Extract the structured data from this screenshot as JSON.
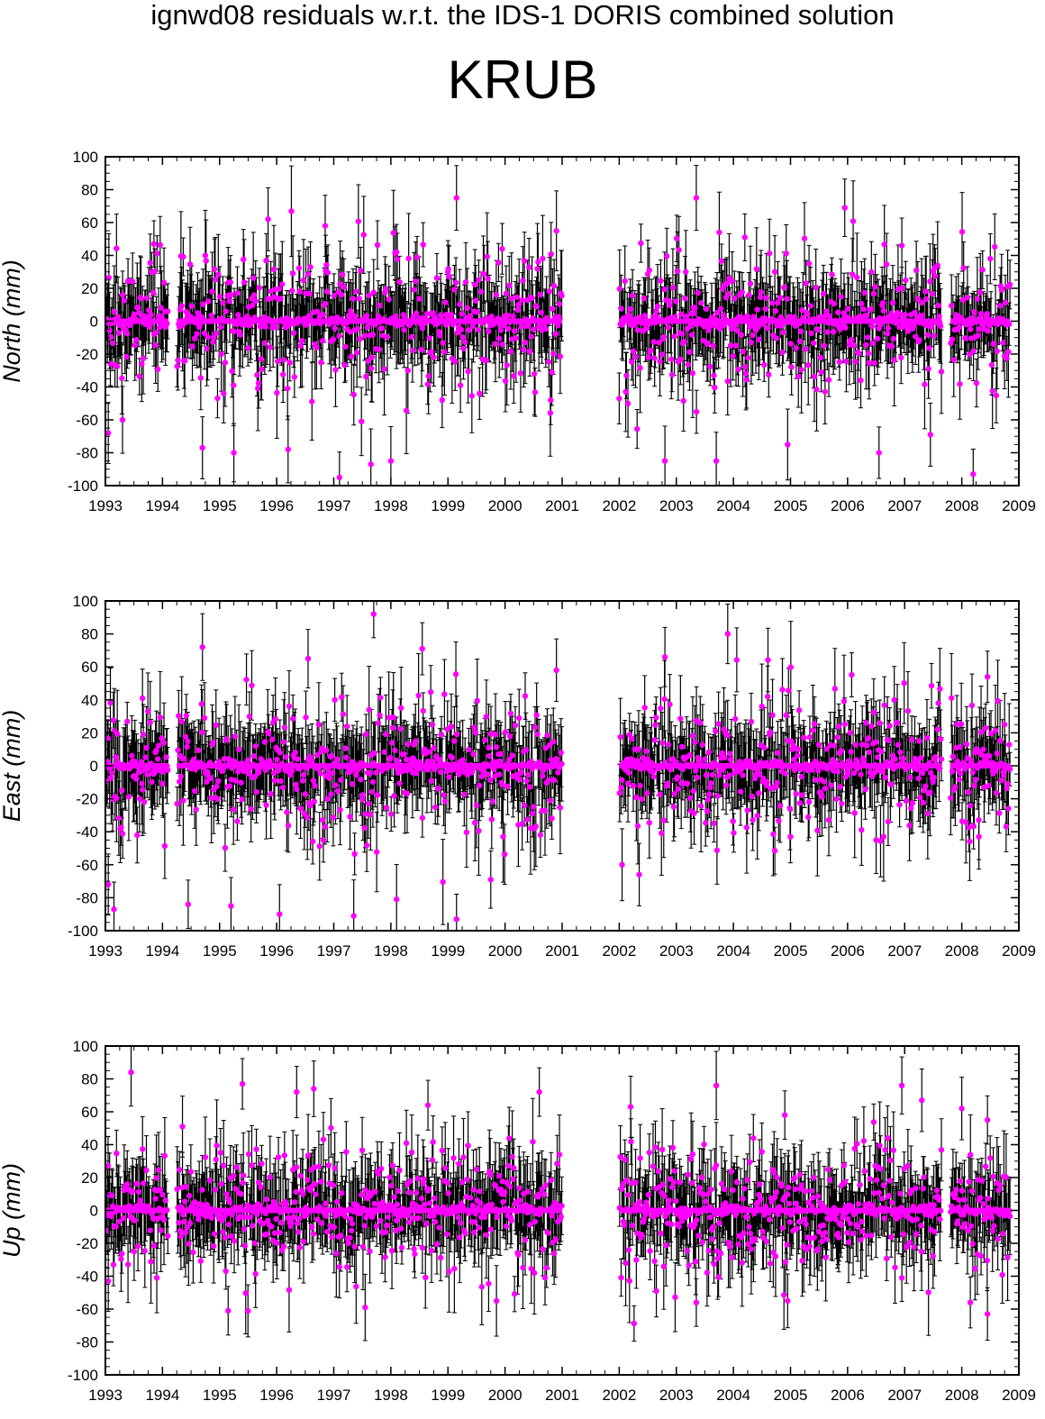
{
  "header": {
    "suptitle": "ignwd08 residuals w.r.t. the IDS-1 DORIS combined solution",
    "station": "KRUB"
  },
  "colors": {
    "marker": "#ff00ff",
    "errorbar": "#000000",
    "axis": "#000000",
    "background": "#ffffff"
  },
  "chart_data": [
    {
      "type": "scatter",
      "component": "North",
      "ylabel": "North (mm)",
      "ylim": [
        -100,
        100
      ],
      "yticks": [
        -100,
        -80,
        -60,
        -40,
        -20,
        0,
        20,
        40,
        60,
        80,
        100
      ],
      "xlim": [
        1993,
        2009
      ],
      "xticks": [
        1993,
        1994,
        1995,
        1996,
        1997,
        1998,
        1999,
        2000,
        2001,
        2002,
        2003,
        2004,
        2005,
        2006,
        2007,
        2008,
        2009
      ],
      "error_bars": true,
      "data_segments": [
        [
          1993.0,
          1994.1
        ],
        [
          1994.25,
          2001.0
        ],
        [
          2002.0,
          2007.65
        ],
        [
          2007.8,
          2008.85
        ]
      ],
      "highlights": [
        {
          "x": 1993.05,
          "y": -68
        },
        {
          "x": 1993.3,
          "y": -60
        },
        {
          "x": 1993.85,
          "y": 47
        },
        {
          "x": 1994.7,
          "y": -77
        },
        {
          "x": 1995.25,
          "y": -80
        },
        {
          "x": 1995.85,
          "y": 62
        },
        {
          "x": 1996.2,
          "y": -78
        },
        {
          "x": 1996.85,
          "y": 58
        },
        {
          "x": 1997.1,
          "y": -95
        },
        {
          "x": 1997.65,
          "y": -87
        },
        {
          "x": 1998.0,
          "y": -85
        },
        {
          "x": 1998.1,
          "y": 42
        },
        {
          "x": 1999.15,
          "y": 75
        },
        {
          "x": 1999.0,
          "y": 30
        },
        {
          "x": 1999.95,
          "y": 44
        },
        {
          "x": 2000.8,
          "y": -48
        },
        {
          "x": 2002.0,
          "y": -47
        },
        {
          "x": 2002.8,
          "y": -85
        },
        {
          "x": 2003.35,
          "y": 75
        },
        {
          "x": 2003.7,
          "y": -85
        },
        {
          "x": 2004.2,
          "y": 51
        },
        {
          "x": 2004.95,
          "y": -75
        },
        {
          "x": 2005.95,
          "y": 69
        },
        {
          "x": 2006.55,
          "y": -80
        },
        {
          "x": 2006.95,
          "y": 46
        },
        {
          "x": 2007.45,
          "y": -69
        },
        {
          "x": 2008.2,
          "y": -93
        },
        {
          "x": 2008.5,
          "y": 38
        }
      ],
      "scatter_sd": 22
    },
    {
      "type": "scatter",
      "component": "East",
      "ylabel": "East (mm)",
      "ylim": [
        -100,
        100
      ],
      "yticks": [
        -100,
        -80,
        -60,
        -40,
        -20,
        0,
        20,
        40,
        60,
        80,
        100
      ],
      "xlim": [
        1993,
        2009
      ],
      "xticks": [
        1993,
        1994,
        1995,
        1996,
        1997,
        1998,
        1999,
        2000,
        2001,
        2002,
        2003,
        2004,
        2005,
        2006,
        2007,
        2008,
        2009
      ],
      "error_bars": true,
      "data_segments": [
        [
          1993.0,
          1994.1
        ],
        [
          1994.25,
          2001.0
        ],
        [
          2002.0,
          2007.65
        ],
        [
          2007.8,
          2008.85
        ]
      ],
      "highlights": [
        {
          "x": 1993.05,
          "y": -72
        },
        {
          "x": 1993.15,
          "y": -87
        },
        {
          "x": 1993.65,
          "y": 41
        },
        {
          "x": 1994.45,
          "y": -84
        },
        {
          "x": 1994.7,
          "y": 72
        },
        {
          "x": 1995.2,
          "y": -85
        },
        {
          "x": 1996.05,
          "y": -90
        },
        {
          "x": 1996.55,
          "y": 65
        },
        {
          "x": 1997.35,
          "y": -91
        },
        {
          "x": 1997.7,
          "y": 92
        },
        {
          "x": 1998.1,
          "y": -81
        },
        {
          "x": 1998.55,
          "y": 71
        },
        {
          "x": 1999.15,
          "y": -93
        },
        {
          "x": 1999.75,
          "y": -69
        },
        {
          "x": 2000.9,
          "y": 58
        },
        {
          "x": 2002.05,
          "y": -60
        },
        {
          "x": 2002.35,
          "y": -66
        },
        {
          "x": 2002.8,
          "y": 66
        },
        {
          "x": 2003.9,
          "y": 80
        },
        {
          "x": 2004.6,
          "y": 42
        },
        {
          "x": 2005.0,
          "y": -43
        },
        {
          "x": 2006.5,
          "y": -45
        },
        {
          "x": 2006.85,
          "y": 26
        },
        {
          "x": 2008.45,
          "y": 54
        },
        {
          "x": 2008.3,
          "y": -43
        }
      ],
      "scatter_sd": 22
    },
    {
      "type": "scatter",
      "component": "Up",
      "ylabel": "Up (mm)",
      "ylim": [
        -100,
        100
      ],
      "yticks": [
        -100,
        -80,
        -60,
        -40,
        -20,
        0,
        20,
        40,
        60,
        80,
        100
      ],
      "xlim": [
        1993,
        2009
      ],
      "xticks": [
        1993,
        1994,
        1995,
        1996,
        1997,
        1998,
        1999,
        2000,
        2001,
        2002,
        2003,
        2004,
        2005,
        2006,
        2007,
        2008,
        2009
      ],
      "error_bars": true,
      "data_segments": [
        [
          1993.0,
          1994.1
        ],
        [
          1994.25,
          2001.0
        ],
        [
          2002.0,
          2007.65
        ],
        [
          2007.8,
          2008.85
        ]
      ],
      "highlights": [
        {
          "x": 1993.05,
          "y": -43
        },
        {
          "x": 1993.45,
          "y": 84
        },
        {
          "x": 1993.9,
          "y": -41
        },
        {
          "x": 1994.35,
          "y": 51
        },
        {
          "x": 1995.15,
          "y": -61
        },
        {
          "x": 1995.4,
          "y": 77
        },
        {
          "x": 1996.35,
          "y": 72
        },
        {
          "x": 1996.65,
          "y": 74
        },
        {
          "x": 1997.55,
          "y": -59
        },
        {
          "x": 1998.65,
          "y": 64
        },
        {
          "x": 1999.85,
          "y": -55
        },
        {
          "x": 2000.6,
          "y": 72
        },
        {
          "x": 2002.2,
          "y": 63
        },
        {
          "x": 2002.65,
          "y": -49
        },
        {
          "x": 2003.35,
          "y": -56
        },
        {
          "x": 2003.7,
          "y": 76
        },
        {
          "x": 2004.35,
          "y": 44
        },
        {
          "x": 2004.9,
          "y": 58
        },
        {
          "x": 2004.95,
          "y": -55
        },
        {
          "x": 2006.7,
          "y": 44
        },
        {
          "x": 2006.95,
          "y": 76
        },
        {
          "x": 2007.3,
          "y": 67
        },
        {
          "x": 2008.0,
          "y": 62
        },
        {
          "x": 2008.15,
          "y": -56
        },
        {
          "x": 2008.45,
          "y": 55
        },
        {
          "x": 2008.45,
          "y": -63
        }
      ],
      "scatter_sd": 20
    }
  ]
}
